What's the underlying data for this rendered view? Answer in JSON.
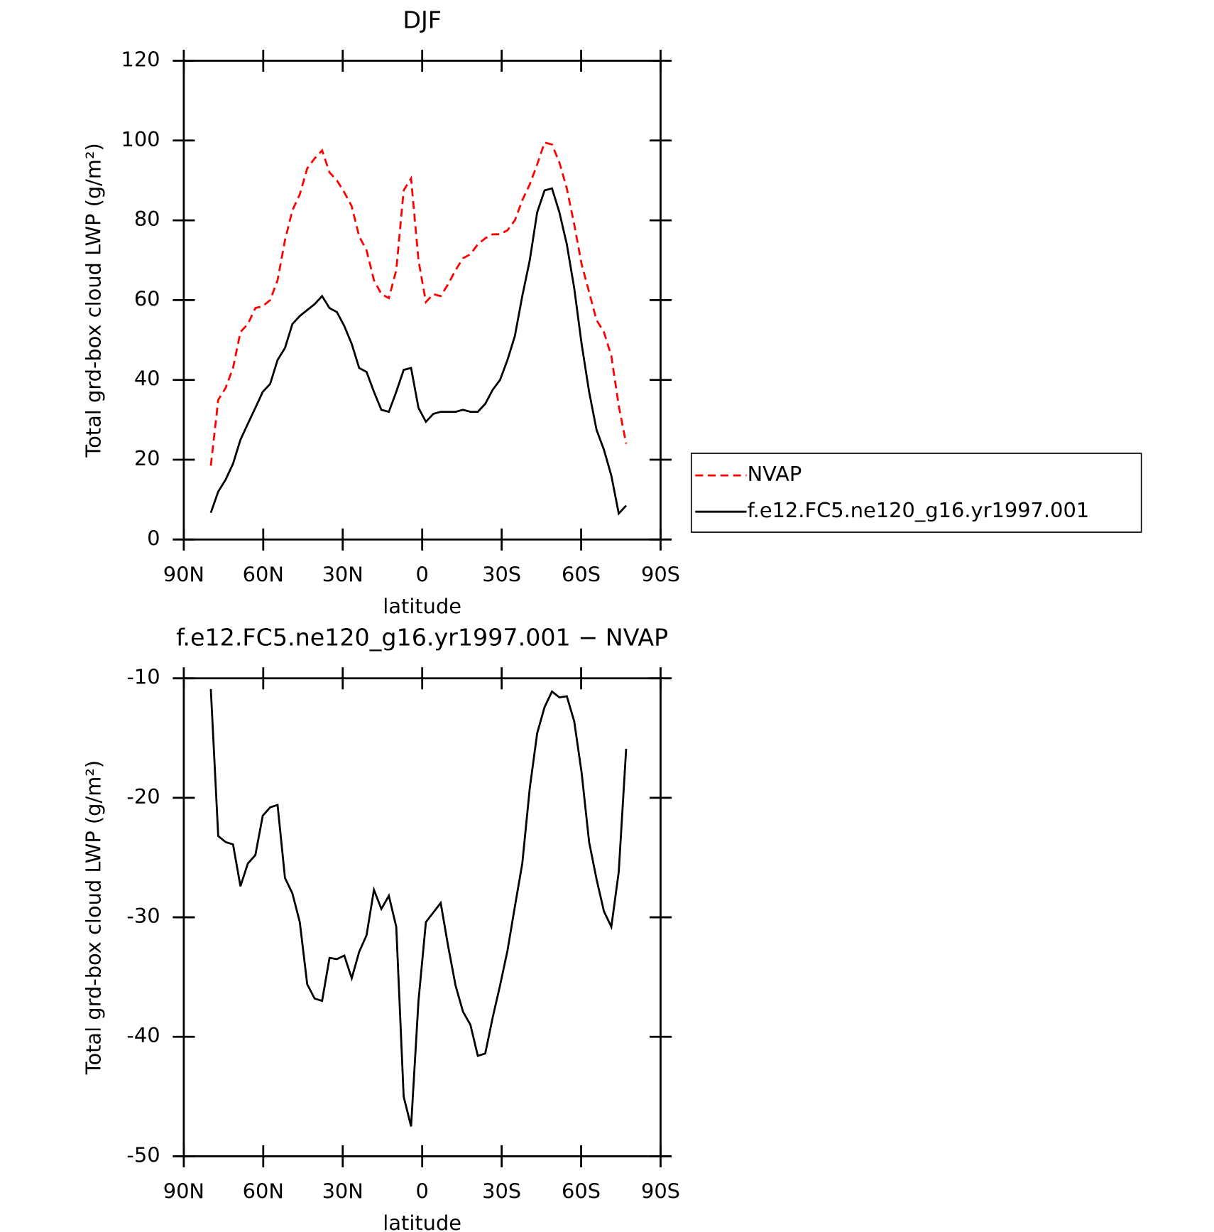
{
  "chart_data": [
    {
      "type": "line",
      "title": "DJF",
      "xlabel": "latitude",
      "ylabel": "Total grd-box cloud LWP (g/m²)",
      "x": [
        79.8,
        77,
        74.2,
        71.4,
        68.6,
        65.8,
        63,
        60.2,
        57.4,
        54.6,
        51.8,
        49,
        46.2,
        43.4,
        40.6,
        37.8,
        35,
        32.2,
        29.4,
        26.6,
        23.8,
        21,
        18.2,
        15.4,
        12.6,
        9.8,
        7,
        4.2,
        1.4,
        -1.4,
        -4.2,
        -7,
        -9.8,
        -12.6,
        -15.4,
        -18.2,
        -21,
        -23.8,
        -26.6,
        -29.4,
        -32.2,
        -35,
        -37.8,
        -40.6,
        -43.4,
        -46.2,
        -49,
        -51.8,
        -54.6,
        -57.4,
        -60.2,
        -63,
        -65.8,
        -68.6,
        -71.4,
        -74.2,
        -77
      ],
      "series": [
        {
          "name": "NVAP",
          "color": "#ff0000",
          "dash": true,
          "values": [
            18.5,
            35,
            38,
            43,
            52,
            54,
            58,
            58.5,
            60,
            65,
            75,
            82.5,
            86.5,
            93,
            95.5,
            97.5,
            92,
            90,
            87,
            83.5,
            76,
            72.5,
            65,
            61.5,
            60.5,
            67.5,
            87.5,
            90.5,
            70,
            59.5,
            61.5,
            61,
            64,
            67.5,
            70.5,
            71.5,
            74,
            75.5,
            76.5,
            76.5,
            77.5,
            80,
            85,
            89,
            94,
            99.5,
            99,
            94.5,
            88,
            79,
            69,
            62,
            55,
            52,
            46,
            33.5,
            24
          ]
        },
        {
          "name": "f.e12.FC5.ne120_g16.yr1997.001",
          "color": "#000000",
          "dash": false,
          "values": [
            6.7,
            12,
            15,
            19,
            25,
            29,
            33,
            37,
            39,
            45,
            48,
            54,
            56,
            57.5,
            59,
            61,
            58,
            57,
            53.5,
            49,
            43,
            42,
            37,
            32.5,
            32,
            37,
            42.5,
            43,
            33,
            29.5,
            31.5,
            32,
            32,
            32,
            32.5,
            32,
            32,
            34,
            37.5,
            40,
            45,
            51,
            61,
            70,
            82,
            87.5,
            88,
            82,
            74,
            63,
            49,
            37,
            27.5,
            22.5,
            16,
            6.5,
            8.5
          ]
        }
      ],
      "xlim": [
        90,
        -90
      ],
      "xticks": [
        {
          "value": 90,
          "label": "90N"
        },
        {
          "value": 60,
          "label": "60N"
        },
        {
          "value": 30,
          "label": "30N"
        },
        0,
        {
          "value": -30,
          "label": "30S"
        },
        {
          "value": -60,
          "label": "60S"
        },
        {
          "value": -90,
          "label": "90S"
        }
      ],
      "ylim": [
        0,
        120
      ],
      "yticks": [
        0,
        20,
        40,
        60,
        80,
        100,
        120
      ],
      "legend": "right"
    },
    {
      "type": "line",
      "title": "f.e12.FC5.ne120_g16.yr1997.001 − NVAP",
      "xlabel": "latitude",
      "ylabel": "Total grd-box cloud LWP (g/m²)",
      "x": [
        79.8,
        77,
        74.2,
        71.4,
        68.6,
        65.8,
        63,
        60.2,
        57.4,
        54.6,
        51.8,
        49,
        46.2,
        43.4,
        40.6,
        37.8,
        35,
        32.2,
        29.4,
        26.6,
        23.8,
        21,
        18.2,
        15.4,
        12.6,
        9.8,
        7,
        4.2,
        1.4,
        -1.4,
        -4.2,
        -7,
        -9.8,
        -12.6,
        -15.4,
        -18.2,
        -21,
        -23.8,
        -26.6,
        -29.4,
        -32.2,
        -35,
        -37.8,
        -40.6,
        -43.4,
        -46.2,
        -49,
        -51.8,
        -54.6,
        -57.4,
        -60.2,
        -63,
        -65.8,
        -68.6,
        -71.4,
        -74.2,
        -77
      ],
      "series": [
        {
          "color": "#000000",
          "dash": false,
          "values": [
            -10.9,
            -23.2,
            -23.7,
            -23.9,
            -27.4,
            -25.5,
            -24.8,
            -21.5,
            -20.8,
            -20.6,
            -26.7,
            -28,
            -30.4,
            -35.6,
            -36.8,
            -37,
            -33.4,
            -33.5,
            -33.2,
            -35.1,
            -32.9,
            -31.5,
            -27.7,
            -29.3,
            -28.2,
            -30.8,
            -45,
            -47.5,
            -37,
            -30.4,
            -29.6,
            -28.8,
            -32.4,
            -35.7,
            -37.9,
            -39,
            -41.6,
            -41.4,
            -38.4,
            -35.7,
            -32.8,
            -29.1,
            -25.5,
            -19.2,
            -14.6,
            -12.4,
            -11.1,
            -11.6,
            -11.5,
            -13.6,
            -17.9,
            -23.7,
            -26.8,
            -29.5,
            -30.8,
            -26.2,
            -15.9
          ]
        }
      ],
      "xlim": [
        90,
        -90
      ],
      "xticks": [
        {
          "value": 90,
          "label": "90N"
        },
        {
          "value": 60,
          "label": "60N"
        },
        {
          "value": 30,
          "label": "30N"
        },
        0,
        {
          "value": -30,
          "label": "30S"
        },
        {
          "value": -60,
          "label": "60S"
        },
        {
          "value": -90,
          "label": "90S"
        }
      ],
      "ylim": [
        -50,
        -10
      ],
      "yticks": [
        -10,
        -20,
        -30,
        -40,
        -50
      ]
    }
  ]
}
